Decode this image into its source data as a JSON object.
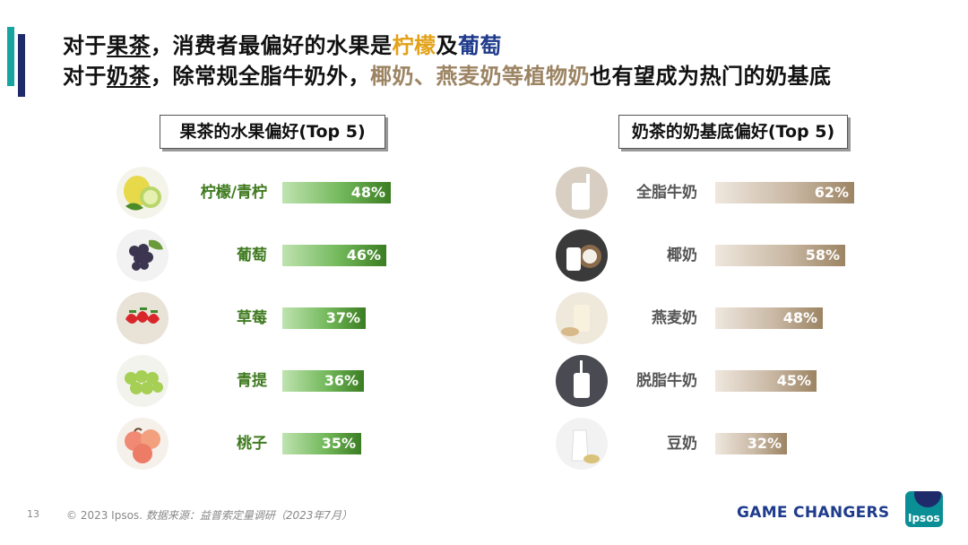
{
  "headline": {
    "line1_pre": "对于",
    "line1_underline": "果茶",
    "line1_mid": "，消费者最偏好的水果是",
    "line1_yellow": "柠檬",
    "line1_and": "及",
    "line1_blue": "葡萄",
    "line2_pre": "对于",
    "line2_underline": "奶茶",
    "line2_mid": "，除常规全脂牛奶外，",
    "line2_tan": "椰奶、燕麦奶等植物奶",
    "line2_end": "也有望成为热门的奶基底"
  },
  "colors": {
    "accent_teal": "#17a3a0",
    "accent_navy": "#1f2a6b",
    "fruit_green": "#3b7d22",
    "milk_tan": "#9c8463",
    "highlight_yellow": "#e3a21a",
    "highlight_blue": "#1f3b8c"
  },
  "chart_data": [
    {
      "type": "bar",
      "title": "果茶的水果偏好(Top 5)",
      "categories": [
        "柠檬/青柠",
        "葡萄",
        "草莓",
        "青提",
        "桃子"
      ],
      "values": [
        48,
        46,
        37,
        36,
        35
      ],
      "value_labels": [
        "48%",
        "46%",
        "37%",
        "36%",
        "35%"
      ],
      "icons": [
        "lemon-icon",
        "grape-icon",
        "strawberry-icon",
        "green-grape-icon",
        "peach-icon"
      ]
    },
    {
      "type": "bar",
      "title": "奶茶的奶基底偏好(Top 5)",
      "categories": [
        "全脂牛奶",
        "椰奶",
        "燕麦奶",
        "脱脂牛奶",
        "豆奶"
      ],
      "values": [
        62,
        58,
        48,
        45,
        32
      ],
      "value_labels": [
        "62%",
        "58%",
        "48%",
        "45%",
        "32%"
      ],
      "icons": [
        "milk-glass-icon",
        "coconut-milk-icon",
        "oat-milk-icon",
        "skim-milk-icon",
        "soy-milk-icon"
      ]
    }
  ],
  "footer": {
    "page_number": "13",
    "copyright": "© 2023 Ipsos.",
    "source": "数据来源：益普索定量调研（2023年7月）",
    "brand": "GAME CHANGERS",
    "logo_text": "Ipsos"
  }
}
